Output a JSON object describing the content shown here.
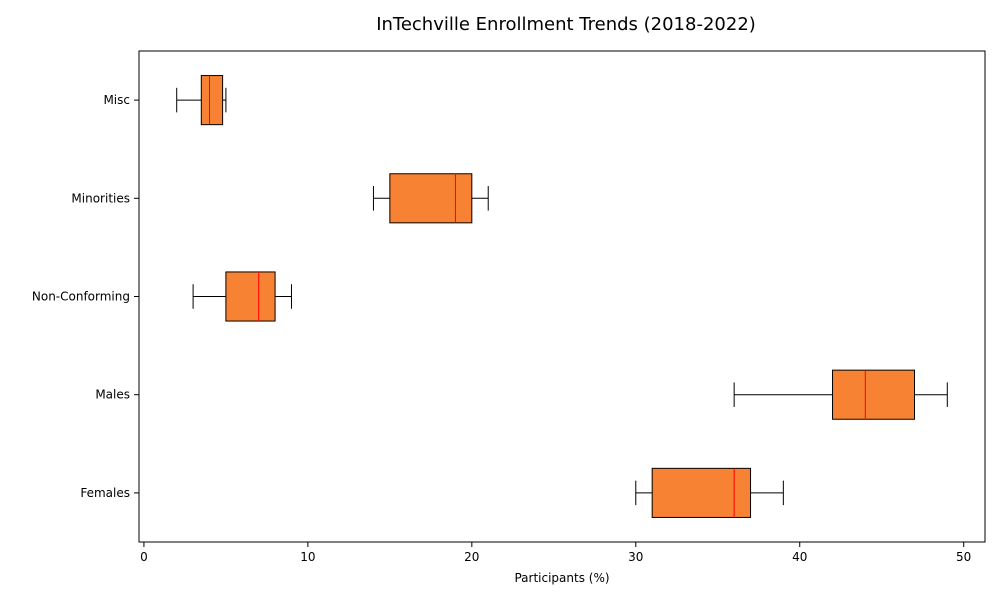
{
  "chart_data": {
    "type": "boxplot",
    "orientation": "horizontal",
    "title": "InTechville Enrollment Trends (2018-2022)",
    "xlabel": "Participants (%)",
    "ylabel": "",
    "xlim": [
      -0.3,
      51.3
    ],
    "xticks": [
      0,
      10,
      20,
      30,
      40,
      50
    ],
    "grid": false,
    "colors": {
      "box_fill": "#f78234",
      "median": "#ff0000",
      "edge": "#000000"
    },
    "categories": [
      "Misc",
      "Minorities",
      "Non-Conforming",
      "Males",
      "Females"
    ],
    "boxes": [
      {
        "category": "Misc",
        "whisker_low": 2,
        "q1": 3.5,
        "median": 4,
        "q3": 4.8,
        "whisker_high": 5
      },
      {
        "category": "Minorities",
        "whisker_low": 14,
        "q1": 15,
        "median": 19,
        "q3": 20,
        "whisker_high": 21
      },
      {
        "category": "Non-Conforming",
        "whisker_low": 3,
        "q1": 5,
        "median": 7,
        "q3": 8,
        "whisker_high": 9
      },
      {
        "category": "Males",
        "whisker_low": 36,
        "q1": 42,
        "median": 44,
        "q3": 47,
        "whisker_high": 49
      },
      {
        "category": "Females",
        "whisker_low": 30,
        "q1": 31,
        "median": 36,
        "q3": 37,
        "whisker_high": 39
      }
    ]
  }
}
